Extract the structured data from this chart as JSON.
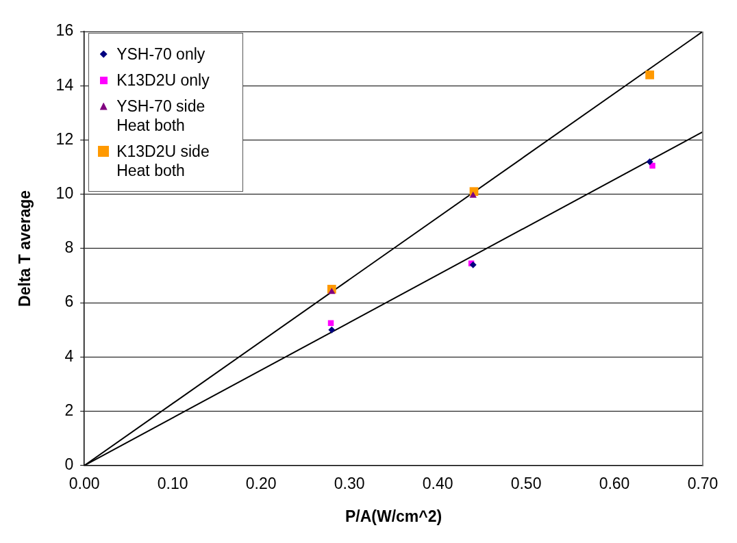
{
  "chart_data": {
    "type": "scatter",
    "xlabel": "P/A(W/cm^2)",
    "ylabel": "Delta T average",
    "xlim": [
      0,
      0.7
    ],
    "xticks": [
      {
        "value": 0,
        "label": "0.00"
      },
      {
        "value": 0.1,
        "label": "0.10"
      },
      {
        "value": 0.2,
        "label": "0.20"
      },
      {
        "value": 0.3,
        "label": "0.30"
      },
      {
        "value": 0.4,
        "label": "0.40"
      },
      {
        "value": 0.5,
        "label": "0.50"
      },
      {
        "value": 0.6,
        "label": "0.60"
      },
      {
        "value": 0.7,
        "label": "0.70"
      }
    ],
    "ylim": [
      0,
      16
    ],
    "yticks": [
      0,
      2,
      4,
      6,
      8,
      10,
      12,
      14,
      16
    ],
    "grid": "y",
    "legend": "top left",
    "series": [
      {
        "name": "YSH-70 only",
        "color": "#000080",
        "marker": "diamond",
        "x": [
          0.28,
          0.44,
          0.64
        ],
        "values": [
          5.0,
          7.4,
          11.2
        ]
      },
      {
        "name": "K13D2U only",
        "color": "#ff00ff",
        "marker": "square",
        "x": [
          0.279,
          0.438,
          0.643
        ],
        "values": [
          5.25,
          7.45,
          11.05
        ]
      },
      {
        "name": "YSH-70 side Heat both",
        "color": "#800080",
        "marker": "triangle",
        "x": [
          0.28,
          0.44
        ],
        "values": [
          6.4,
          9.95
        ]
      },
      {
        "name": "K13D2U side Heat both",
        "color": "#ff9900",
        "marker": "square",
        "x": [
          0.28,
          0.441,
          0.64
        ],
        "values": [
          6.5,
          10.1,
          14.4
        ]
      },
      {
        "type": "line",
        "color": "#000000",
        "marker": "none",
        "line_style": "solid",
        "x": [
          0,
          0.7
        ],
        "values": [
          0,
          16.0
        ]
      },
      {
        "type": "line",
        "color": "#000000",
        "marker": "none",
        "line_style": "solid",
        "x": [
          0,
          0.7
        ],
        "values": [
          0,
          12.3
        ]
      }
    ]
  }
}
